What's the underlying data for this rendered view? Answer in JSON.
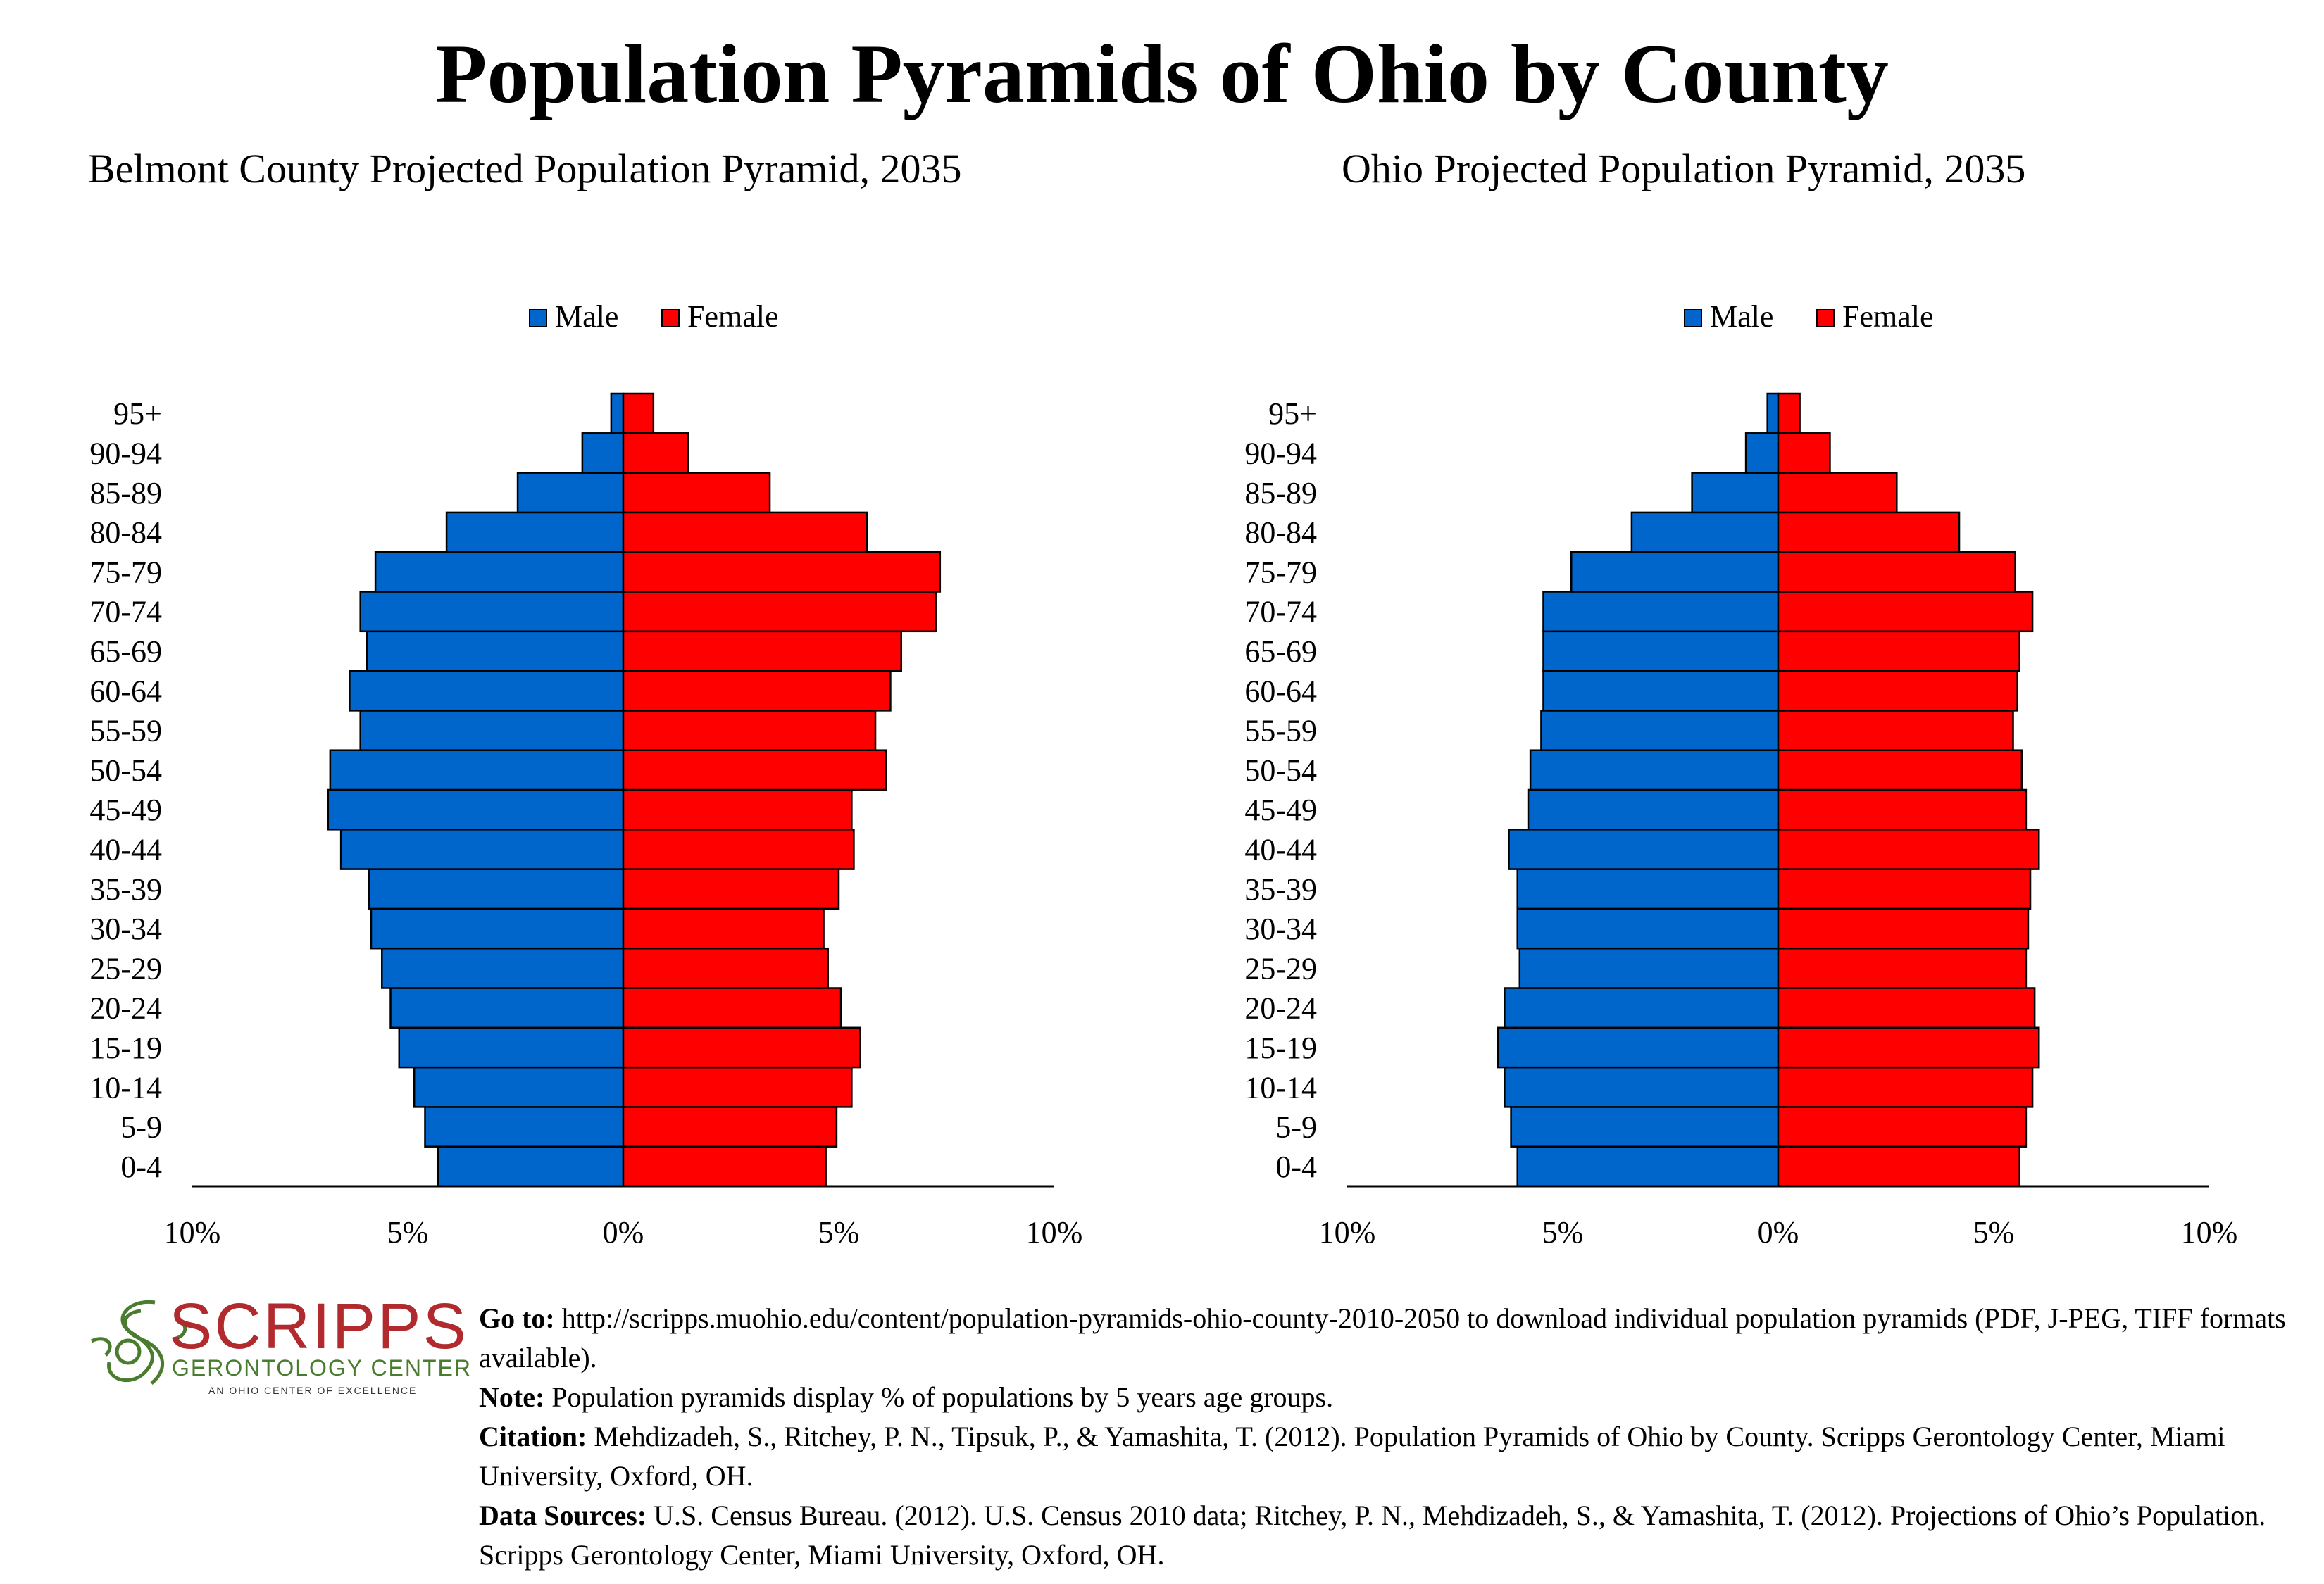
{
  "title": "Population Pyramids of Ohio by County",
  "chart_data": [
    {
      "type": "bar",
      "title": "Belmont County Projected Population Pyramid, 2035",
      "orientation": "horizontal",
      "categories": [
        "0-4",
        "5-9",
        "10-14",
        "15-19",
        "20-24",
        "25-29",
        "30-34",
        "35-39",
        "40-44",
        "45-49",
        "50-54",
        "55-59",
        "60-64",
        "65-69",
        "70-74",
        "75-79",
        "80-84",
        "85-89",
        "90-94",
        "95+"
      ],
      "series": [
        {
          "name": "Male",
          "color": "#0066cc",
          "values": [
            4.3,
            4.6,
            4.85,
            5.2,
            5.4,
            5.6,
            5.85,
            5.9,
            6.55,
            6.85,
            6.8,
            6.1,
            6.35,
            5.95,
            6.1,
            5.75,
            4.1,
            2.45,
            0.95,
            0.28
          ]
        },
        {
          "name": "Female",
          "color": "#ff0000",
          "values": [
            4.7,
            4.95,
            5.3,
            5.5,
            5.05,
            4.75,
            4.65,
            5.0,
            5.35,
            5.3,
            6.1,
            5.85,
            6.2,
            6.45,
            7.25,
            7.35,
            5.65,
            3.4,
            1.5,
            0.7
          ]
        }
      ],
      "xlim": [
        -10,
        10
      ],
      "xticks": [
        "10%",
        "5%",
        "0%",
        "5%",
        "10%"
      ],
      "legend": "top-center"
    },
    {
      "type": "bar",
      "title": "Ohio Projected Population Pyramid, 2035",
      "orientation": "horizontal",
      "categories": [
        "0-4",
        "5-9",
        "10-14",
        "15-19",
        "20-24",
        "25-29",
        "30-34",
        "35-39",
        "40-44",
        "45-49",
        "50-54",
        "55-59",
        "60-64",
        "65-69",
        "70-74",
        "75-79",
        "80-84",
        "85-89",
        "90-94",
        "95+"
      ],
      "series": [
        {
          "name": "Male",
          "color": "#0066cc",
          "values": [
            6.05,
            6.2,
            6.35,
            6.5,
            6.35,
            6.0,
            6.05,
            6.05,
            6.25,
            5.8,
            5.75,
            5.5,
            5.45,
            5.45,
            5.45,
            4.8,
            3.4,
            2.0,
            0.75,
            0.25
          ]
        },
        {
          "name": "Female",
          "color": "#ff0000",
          "values": [
            5.6,
            5.75,
            5.9,
            6.05,
            5.95,
            5.75,
            5.8,
            5.85,
            6.05,
            5.75,
            5.65,
            5.45,
            5.55,
            5.6,
            5.9,
            5.5,
            4.2,
            2.75,
            1.2,
            0.5
          ]
        }
      ],
      "xlim": [
        -10,
        10
      ],
      "xticks": [
        "10%",
        "5%",
        "0%",
        "5%",
        "10%"
      ],
      "legend": "top-center"
    }
  ],
  "logo": {
    "name": "SCRIPPS",
    "subtitle": "GERONTOLOGY CENTER",
    "tagline": "AN OHIO CENTER OF EXCELLENCE"
  },
  "notes": [
    {
      "label": "Go to:",
      "text": " http://scripps.muohio.edu/content/population-pyramids-ohio-county-2010-2050 to download individual population pyramids (PDF, J-PEG, TIFF formats available)."
    },
    {
      "label": "Note:",
      "text": " Population pyramids display % of populations by 5 years age groups."
    },
    {
      "label": "Citation:",
      "text": " Mehdizadeh, S., Ritchey, P. N., Tipsuk, P., & Yamashita, T. (2012). Population Pyramids of Ohio by County. Scripps Gerontology Center, Miami University, Oxford, OH."
    },
    {
      "label": "Data Sources:",
      "text": " U.S. Census Bureau. (2012). U.S. Census 2010 data; Ritchey, P. N., Mehdizadeh, S., & Yamashita, T. (2012). Projections of Ohio’s Population. Scripps Gerontology Center, Miami University, Oxford, OH."
    }
  ]
}
